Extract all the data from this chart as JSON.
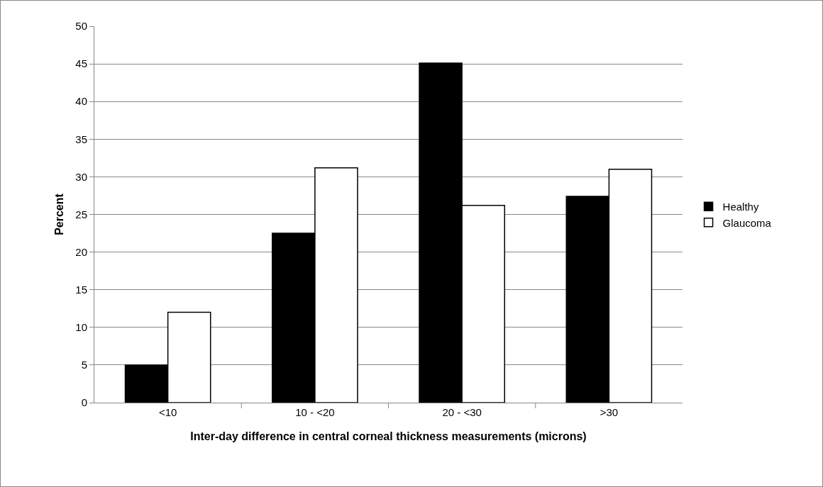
{
  "chart_data": {
    "type": "bar",
    "xlabel": "Inter-day difference in central corneal thickness measurements (microns)",
    "ylabel": "Percent",
    "categories": [
      "<10",
      "10 - <20",
      "20 - <30",
      ">30"
    ],
    "series": [
      {
        "name": "Healthy",
        "color": "#000000",
        "values": [
          5,
          22.5,
          45.1,
          27.4
        ]
      },
      {
        "name": "Glaucoma",
        "color": "#ffffff",
        "values": [
          12,
          31.2,
          26.2,
          31
        ]
      }
    ],
    "ylim": [
      0,
      50
    ],
    "yticks": [
      0,
      5,
      10,
      15,
      20,
      25,
      30,
      35,
      40,
      45,
      50
    ],
    "grid": "y",
    "legend": "right"
  }
}
